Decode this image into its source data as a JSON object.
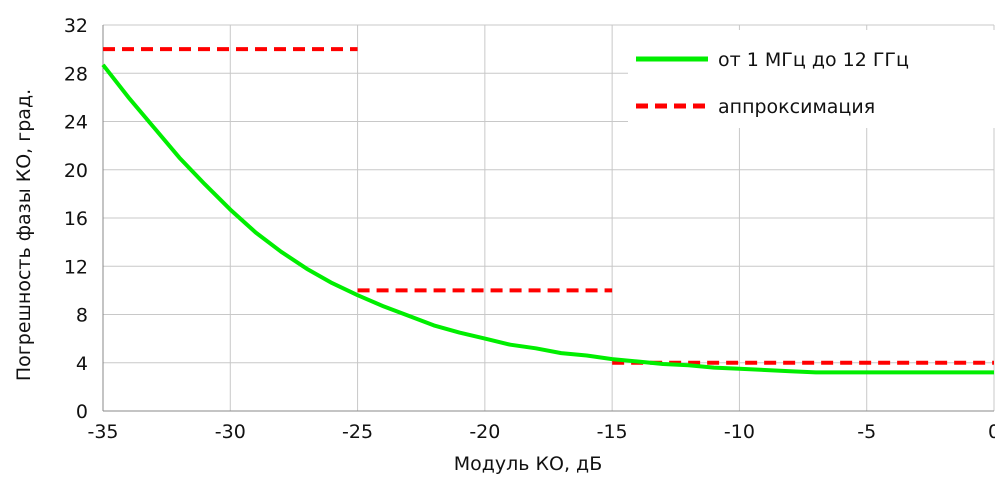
{
  "chart_data": {
    "type": "line",
    "xlabel": "Модуль КО, дБ",
    "ylabel": "Погрешность  фазы КО, град.",
    "xlim": [
      -35,
      0
    ],
    "ylim": [
      0,
      32
    ],
    "x_ticks": [
      -35,
      -30,
      -25,
      -20,
      -15,
      -10,
      -5,
      0
    ],
    "y_ticks": [
      0,
      4,
      8,
      12,
      16,
      20,
      24,
      28,
      32
    ],
    "grid": true,
    "legend_position": "top-right",
    "series": [
      {
        "name": "от 1 МГц до 12 ГГц",
        "color": "#00ee00",
        "style": "solid",
        "points": [
          [
            -35,
            28.7
          ],
          [
            -34,
            26.0
          ],
          [
            -33,
            23.5
          ],
          [
            -32,
            21.0
          ],
          [
            -31,
            18.8
          ],
          [
            -30,
            16.7
          ],
          [
            -29,
            14.8
          ],
          [
            -28,
            13.2
          ],
          [
            -27,
            11.8
          ],
          [
            -26,
            10.6
          ],
          [
            -25,
            9.6
          ],
          [
            -24,
            8.7
          ],
          [
            -23,
            7.9
          ],
          [
            -22,
            7.1
          ],
          [
            -21,
            6.5
          ],
          [
            -20,
            6.0
          ],
          [
            -19,
            5.5
          ],
          [
            -18,
            5.2
          ],
          [
            -17,
            4.8
          ],
          [
            -16,
            4.6
          ],
          [
            -15,
            4.3
          ],
          [
            -14,
            4.1
          ],
          [
            -13,
            3.9
          ],
          [
            -12,
            3.8
          ],
          [
            -11,
            3.6
          ],
          [
            -10,
            3.5
          ],
          [
            -9,
            3.4
          ],
          [
            -8,
            3.3
          ],
          [
            -7,
            3.2
          ],
          [
            -6,
            3.2
          ],
          [
            -5,
            3.2
          ],
          [
            -4,
            3.2
          ],
          [
            -3,
            3.2
          ],
          [
            -2,
            3.2
          ],
          [
            -1,
            3.2
          ],
          [
            0,
            3.2
          ]
        ]
      },
      {
        "name": "аппроксимация",
        "color": "#ff0000",
        "style": "dashed",
        "segments": [
          [
            [
              -35,
              30
            ],
            [
              -25,
              30
            ]
          ],
          [
            [
              -25,
              10
            ],
            [
              -15,
              10
            ]
          ],
          [
            [
              -15,
              4
            ],
            [
              0,
              4
            ]
          ]
        ]
      }
    ]
  }
}
